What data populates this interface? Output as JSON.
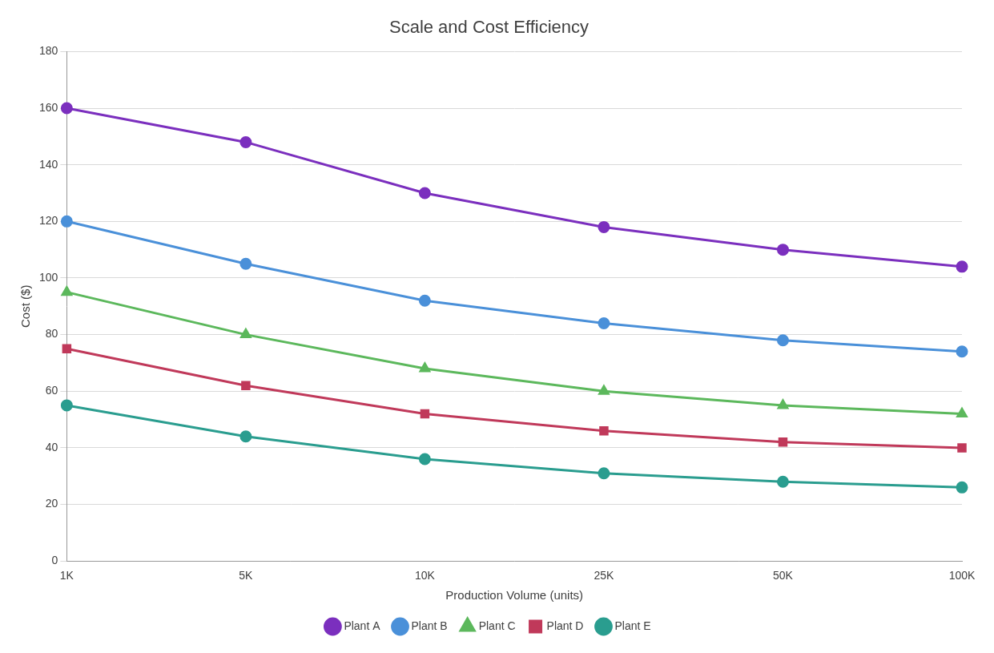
{
  "chart_data": {
    "type": "line",
    "title": "Scale and Cost Efficiency",
    "x_label": "Production Volume (units)",
    "y_label": "Cost ($)",
    "categories": [
      "1K",
      "5K",
      "10K",
      "25K",
      "50K",
      "100K"
    ],
    "series": [
      {
        "name": "Plant A",
        "color": "#7b2fbe",
        "marker": "circle",
        "values": [
          160,
          148,
          130,
          118,
          110,
          104
        ]
      },
      {
        "name": "Plant B",
        "color": "#4a90d9",
        "marker": "circle",
        "values": [
          120,
          105,
          92,
          84,
          78,
          74
        ]
      },
      {
        "name": "Plant C",
        "color": "#5cb85c",
        "marker": "triangle",
        "values": [
          95,
          80,
          68,
          60,
          55,
          52
        ]
      },
      {
        "name": "Plant D",
        "color": "#c0395a",
        "marker": "rect",
        "values": [
          75,
          62,
          52,
          46,
          42,
          40
        ]
      },
      {
        "name": "Plant E",
        "color": "#2a9d8f",
        "marker": "circle",
        "values": [
          55,
          44,
          36,
          31,
          28,
          26
        ]
      }
    ],
    "ylim": [
      0,
      180
    ],
    "yticks": [
      0,
      20,
      40,
      60,
      80,
      100,
      120,
      140,
      160,
      180
    ],
    "grid": true,
    "legend": "bottom"
  }
}
